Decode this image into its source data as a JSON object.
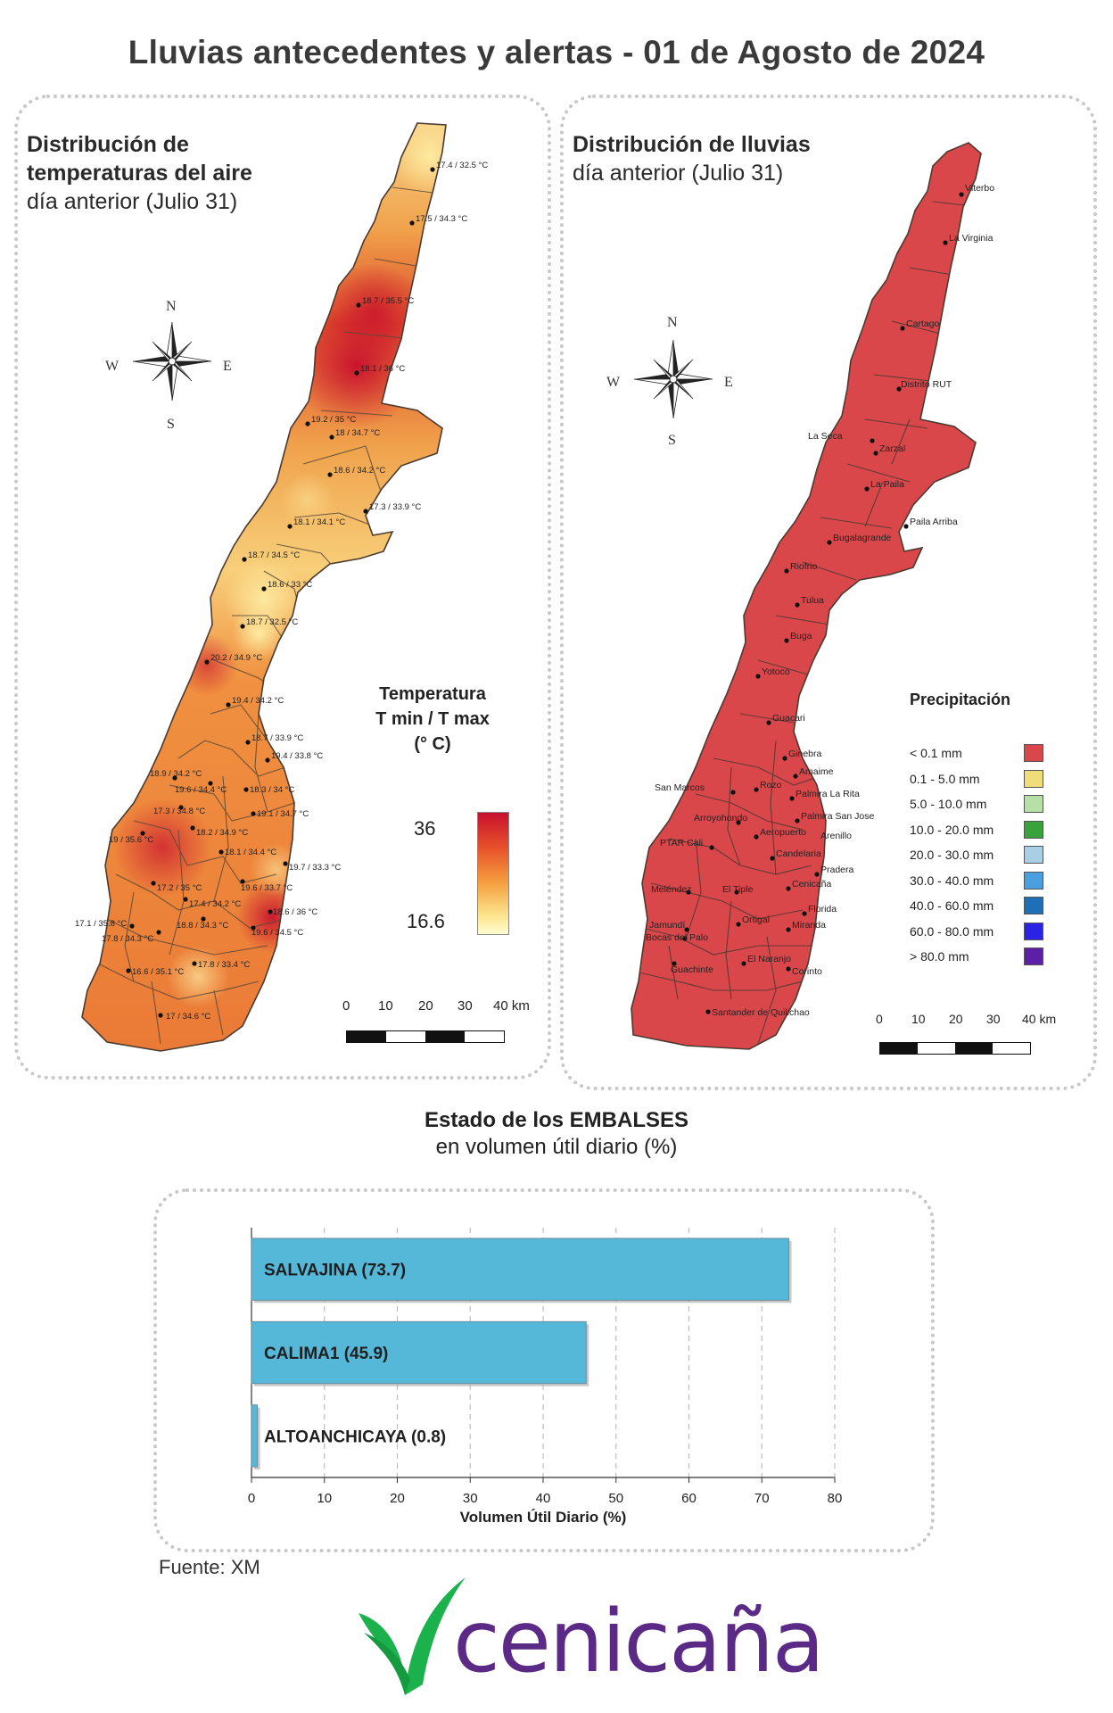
{
  "title": "Lluvias antecedentes y alertas - 01 de Agosto de 2024",
  "temp_panel": {
    "title_line1": "Distribución de",
    "title_line2": "temperaturas del aire",
    "subtitle": "día anterior (Julio 31)",
    "compass": {
      "n": "N",
      "s": "S",
      "e": "E",
      "w": "W"
    },
    "legend": {
      "title_line1": "Temperatura",
      "title_line2": "T min / T max",
      "title_line3": "(° C)",
      "max_label": "36",
      "min_label": "16.6",
      "colors": [
        "#c8102e",
        "#e8542a",
        "#f5a040",
        "#fde68f",
        "#fffbd0"
      ]
    },
    "scale": {
      "ticks": [
        "0",
        "10",
        "20",
        "30",
        "40 km"
      ]
    },
    "stations": [
      "17.4 / 32.5 °C",
      "17.5 / 34.3 °C",
      "18.7 / 35.5 °C",
      "18.1 / 36 °C",
      "19.2 / 35 °C",
      "18 / 34.7 °C",
      "18.6 / 34.2 °C",
      "17.3 / 33.9 °C",
      "18.1 / 34.1 °C",
      "18.7 / 34.5 °C",
      "18.6 / 33 °C",
      "18.7 / 32.5 °C",
      "20.2 / 34.9 °C",
      "19.4 / 34.2 °C",
      "18.7 / 33.9 °C",
      "19.4 / 33.8 °C",
      "18.9 / 34.2 °C",
      "19.6 / 34.4 °C",
      "18.3 / 34 °C",
      "17.3 / 34.8 °C",
      "19.1 / 34.7 °C",
      "19 / 35.6 °C",
      "18.2 / 34.9 °C",
      "18.1 / 34.4 °C",
      "19.7 / 33.3 °C",
      "19.6 / 33.7 °C",
      "17.2 / 35 °C",
      "17.4 / 34.2 °C",
      "18.6 / 36 °C",
      "17.1 / 35.8 °C",
      "18.8 / 34.3 °C",
      "19.6 / 34.5 °C",
      "17.8 / 34.3 °C",
      "16.6 / 35.1 °C",
      "17.8 / 33.4 °C",
      "17 / 34.6 °C"
    ]
  },
  "rain_panel": {
    "title": "Distribución de lluvias",
    "subtitle": "día anterior (Julio 31)",
    "compass": {
      "n": "N",
      "s": "S",
      "e": "E",
      "w": "W"
    },
    "map_color": "#d9474b",
    "legend": {
      "title": "Precipitación",
      "classes": [
        {
          "label": "< 0.1 mm",
          "color": "#d9474b"
        },
        {
          "label": "0.1 - 5.0 mm",
          "color": "#f0dc78"
        },
        {
          "label": "5.0 - 10.0 mm",
          "color": "#b7e0a6"
        },
        {
          "label": "10.0 - 20.0 mm",
          "color": "#38a33a"
        },
        {
          "label": "20.0 - 30.0 mm",
          "color": "#a9cfe6"
        },
        {
          "label": "30.0 - 40.0 mm",
          "color": "#4a9fe0"
        },
        {
          "label": "40.0 - 60.0 mm",
          "color": "#1f6fb8"
        },
        {
          "label": "60.0 - 80.0 mm",
          "color": "#2b22e6"
        },
        {
          "label": "> 80.0 mm",
          "color": "#5b1fa8"
        }
      ]
    },
    "scale": {
      "ticks": [
        "0",
        "10",
        "20",
        "30",
        "40 km"
      ]
    },
    "towns": [
      "Viterbo",
      "La Virginia",
      "Cartago",
      "Distrito RUT",
      "La Seca",
      "Zarzal",
      "La Paila",
      "Paila Arriba",
      "Bugalagrande",
      "Riofrio",
      "Tulua",
      "Buga",
      "Yotoco",
      "Guacari",
      "Ginebra",
      "Amaime",
      "San Marcos",
      "Rozo",
      "Palmira La Rita",
      "Arroyohondo",
      "Palmira San Jose",
      "Aeropuerto",
      "Arenillo",
      "PTAR Cali",
      "Candelaria",
      "Pradera",
      "Cenicaña",
      "Meléndez",
      "El Tiple",
      "Florida",
      "Jamundí",
      "Bocas del Palo",
      "Ortigal",
      "Miranda",
      "El Naranjo",
      "Guachinte",
      "Corinto",
      "Santander de Quilichao"
    ]
  },
  "reservoirs": {
    "title_line1": "Estado de los EMBALSES",
    "title_line2": "en volumen útil diario (%)",
    "source": "Fuente: XM",
    "chart_data": {
      "type": "bar",
      "orientation": "horizontal",
      "categories": [
        "SALVAJINA",
        "CALIMA1",
        "ALTOANCHICAYA"
      ],
      "values": [
        73.7,
        45.9,
        0.8
      ],
      "bar_labels": [
        "SALVAJINA (73.7)",
        "CALIMA1 (45.9)",
        "ALTOANCHICAYA (0.8)"
      ],
      "xlabel": "Volumen Útil Diario (%)",
      "xlim": [
        0,
        80
      ],
      "xticks": [
        "0",
        "10",
        "20",
        "30",
        "40",
        "50",
        "60",
        "70",
        "80"
      ],
      "grid": true,
      "bar_color": "#55b8d9"
    }
  },
  "logo": {
    "text": "cenicaña",
    "color": "#5b2a86",
    "leaf_color": "#1bb14c"
  }
}
